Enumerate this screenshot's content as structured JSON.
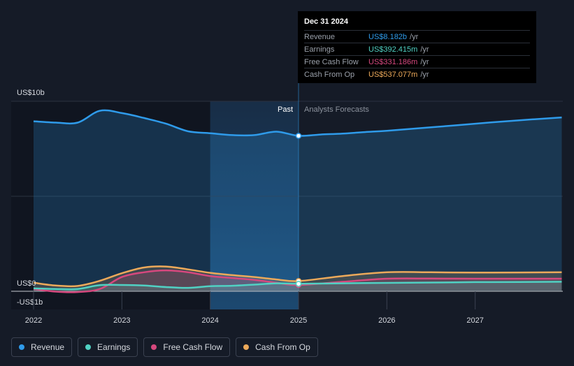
{
  "chart_data": {
    "type": "area",
    "y_axis": {
      "top_label": "US$10b",
      "zero_label": "US$0",
      "bottom_label": "-US$1b",
      "ylim": [
        -1,
        10
      ]
    },
    "x_axis": {
      "ticks": [
        "2022",
        "2023",
        "2024",
        "2025",
        "2026",
        "2027"
      ],
      "range": [
        2021.75,
        2027.98
      ]
    },
    "past_label": "Past",
    "forecast_label": "Analysts Forecasts",
    "forecast_start": 2025.0,
    "shaded_start": 2024.0,
    "series": [
      {
        "name": "Revenue",
        "color": "#2f9bea",
        "x": [
          2022.0,
          2022.25,
          2022.5,
          2022.75,
          2023.0,
          2023.25,
          2023.5,
          2023.75,
          2024.0,
          2024.25,
          2024.5,
          2024.75,
          2025.0,
          2025.25,
          2025.5,
          2025.75,
          2026.0,
          2026.5,
          2027.0,
          2027.5,
          2027.98
        ],
        "y": [
          8.95,
          8.88,
          8.88,
          9.5,
          9.38,
          9.12,
          8.82,
          8.42,
          8.32,
          8.22,
          8.22,
          8.4,
          8.182,
          8.25,
          8.3,
          8.38,
          8.45,
          8.63,
          8.82,
          9.0,
          9.15
        ]
      },
      {
        "name": "Earnings",
        "color": "#50d1c3",
        "x": [
          2022.0,
          2022.25,
          2022.5,
          2022.75,
          2023.0,
          2023.25,
          2023.5,
          2023.75,
          2024.0,
          2024.25,
          2024.5,
          2024.75,
          2025.0,
          2025.5,
          2026.0,
          2026.5,
          2027.0,
          2027.5,
          2027.98
        ],
        "y": [
          0.15,
          0.12,
          0.12,
          0.32,
          0.33,
          0.3,
          0.22,
          0.18,
          0.27,
          0.29,
          0.35,
          0.42,
          0.392,
          0.42,
          0.44,
          0.46,
          0.48,
          0.49,
          0.5
        ]
      },
      {
        "name": "Free Cash Flow",
        "color": "#d6487e",
        "x": [
          2022.0,
          2022.25,
          2022.5,
          2022.75,
          2023.0,
          2023.25,
          2023.5,
          2023.75,
          2024.0,
          2024.25,
          2024.5,
          2024.75,
          2025.0,
          2025.5,
          2026.0,
          2026.5,
          2027.0,
          2027.5,
          2027.98
        ],
        "y": [
          0.12,
          -0.02,
          -0.04,
          0.12,
          0.75,
          1.0,
          1.1,
          1.0,
          0.8,
          0.7,
          0.6,
          0.45,
          0.331,
          0.5,
          0.66,
          0.67,
          0.66,
          0.66,
          0.66
        ]
      },
      {
        "name": "Cash From Op",
        "color": "#eca95a",
        "x": [
          2022.0,
          2022.25,
          2022.5,
          2022.75,
          2023.0,
          2023.25,
          2023.5,
          2023.75,
          2024.0,
          2024.25,
          2024.5,
          2024.75,
          2025.0,
          2025.5,
          2026.0,
          2026.5,
          2027.0,
          2027.5,
          2027.98
        ],
        "y": [
          0.45,
          0.3,
          0.28,
          0.55,
          0.95,
          1.25,
          1.3,
          1.15,
          0.97,
          0.85,
          0.75,
          0.62,
          0.537,
          0.8,
          1.0,
          1.0,
          0.98,
          0.99,
          1.0
        ]
      }
    ]
  },
  "tooltip": {
    "date": "Dec 31 2024",
    "rows": [
      {
        "label": "Revenue",
        "value": "US$8.182b",
        "unit": "/yr",
        "color": "#2f9bea"
      },
      {
        "label": "Earnings",
        "value": "US$392.415m",
        "unit": "/yr",
        "color": "#50d1c3"
      },
      {
        "label": "Free Cash Flow",
        "value": "US$331.186m",
        "unit": "/yr",
        "color": "#d6487e"
      },
      {
        "label": "Cash From Op",
        "value": "US$537.077m",
        "unit": "/yr",
        "color": "#eca95a"
      }
    ]
  },
  "legend": [
    {
      "label": "Revenue",
      "color": "#2f9bea"
    },
    {
      "label": "Earnings",
      "color": "#50d1c3"
    },
    {
      "label": "Free Cash Flow",
      "color": "#d6487e"
    },
    {
      "label": "Cash From Op",
      "color": "#eca95a"
    }
  ]
}
